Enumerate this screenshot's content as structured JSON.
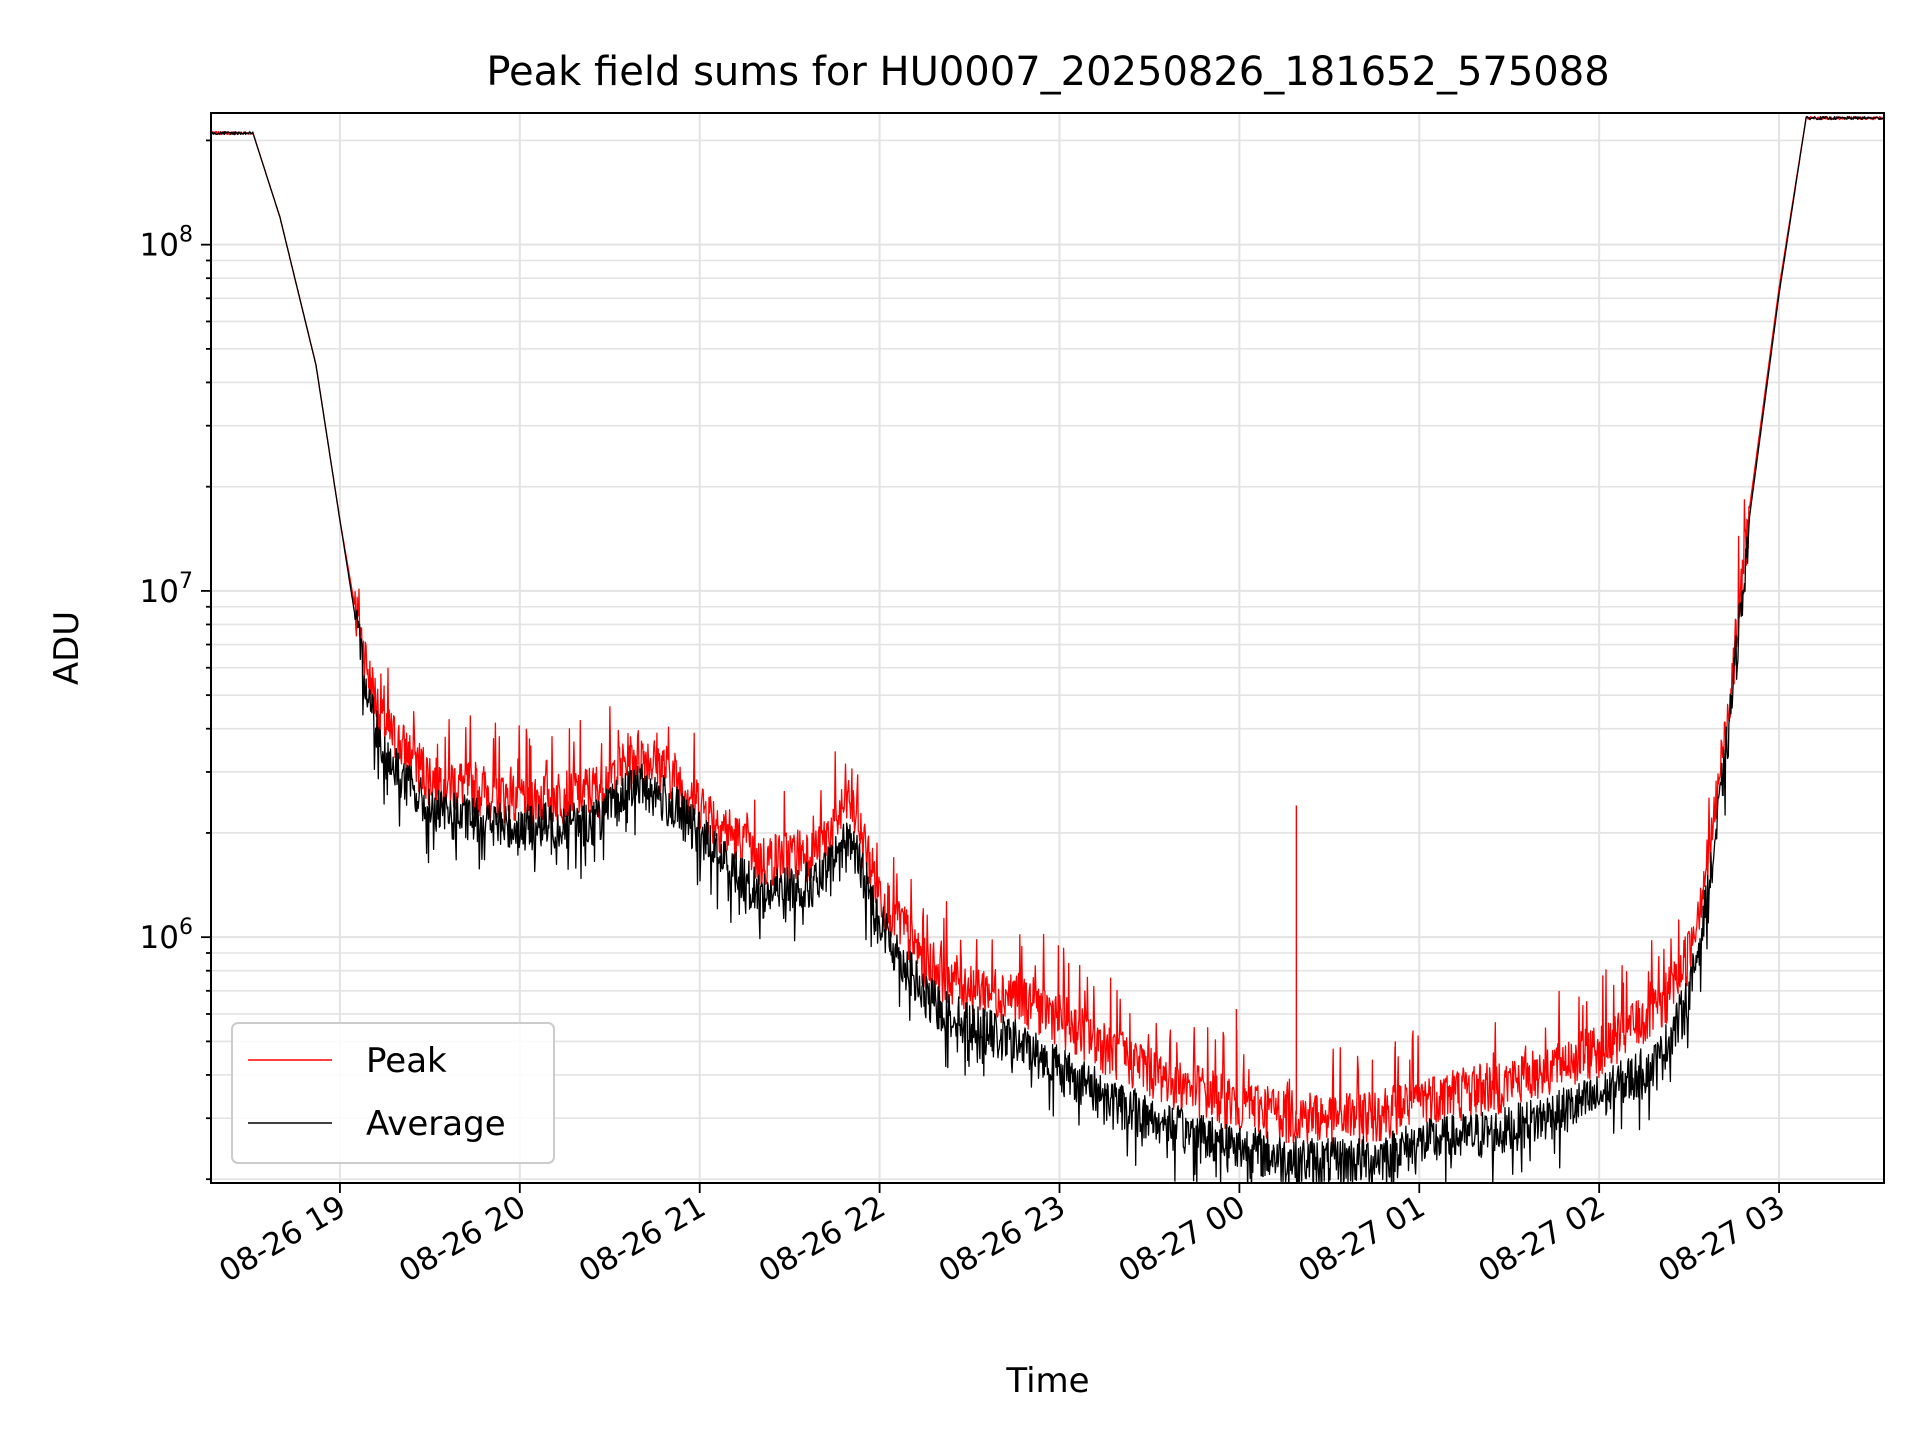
{
  "chart_data": {
    "type": "line",
    "title": "Peak field sums for HU0007_20250826_181652_575088",
    "xlabel": "Time",
    "ylabel": "ADU",
    "yscale": "log",
    "ylim": [
      195000,
      240000000
    ],
    "xlim": [
      "2025-08-26 18:17",
      "2025-08-27 03:35"
    ],
    "grid": true,
    "legend_position": "lower-left",
    "x_ticks": [
      {
        "value": "2025-08-26 19:00",
        "label": "08-26 19"
      },
      {
        "value": "2025-08-26 20:00",
        "label": "08-26 20"
      },
      {
        "value": "2025-08-26 21:00",
        "label": "08-26 21"
      },
      {
        "value": "2025-08-26 22:00",
        "label": "08-26 22"
      },
      {
        "value": "2025-08-26 23:00",
        "label": "08-26 23"
      },
      {
        "value": "2025-08-27 00:00",
        "label": "08-27 00"
      },
      {
        "value": "2025-08-27 01:00",
        "label": "08-27 01"
      },
      {
        "value": "2025-08-27 02:00",
        "label": "08-27 02"
      },
      {
        "value": "2025-08-27 03:00",
        "label": "08-27 03"
      }
    ],
    "y_ticks": [
      {
        "value": 1000000,
        "base": "10",
        "exp": "6"
      },
      {
        "value": 10000000,
        "base": "10",
        "exp": "7"
      },
      {
        "value": 100000000,
        "base": "10",
        "exp": "8"
      }
    ],
    "series": [
      {
        "name": "Peak",
        "color": "#ff0000",
        "x": [
          "2025-08-26 18:17",
          "2025-08-26 18:31",
          "2025-08-26 18:40",
          "2025-08-26 18:52",
          "2025-08-26 19:00",
          "2025-08-26 19:05",
          "2025-08-26 19:10",
          "2025-08-26 19:15",
          "2025-08-26 19:30",
          "2025-08-26 20:00",
          "2025-08-26 20:25",
          "2025-08-26 20:40",
          "2025-08-26 20:50",
          "2025-08-26 21:05",
          "2025-08-26 21:20",
          "2025-08-26 21:40",
          "2025-08-26 21:50",
          "2025-08-26 22:00",
          "2025-08-26 22:15",
          "2025-08-26 22:30",
          "2025-08-26 22:45",
          "2025-08-26 23:00",
          "2025-08-26 23:20",
          "2025-08-26 23:40",
          "2025-08-27 00:00",
          "2025-08-27 00:15",
          "2025-08-27 00:30",
          "2025-08-27 00:45",
          "2025-08-27 01:00",
          "2025-08-27 01:30",
          "2025-08-27 02:00",
          "2025-08-27 02:20",
          "2025-08-27 02:30",
          "2025-08-27 02:37",
          "2025-08-27 02:43",
          "2025-08-27 02:50",
          "2025-08-27 03:00",
          "2025-08-27 03:09",
          "2025-08-27 03:35"
        ],
        "values": [
          210000000,
          210000000,
          120000000,
          45000000,
          16000000,
          9000000,
          5500000,
          4000000,
          2900000,
          2500000,
          2650000,
          3400000,
          3000000,
          2200000,
          1650000,
          1800000,
          2500000,
          1350000,
          850000,
          720000,
          680000,
          590000,
          460000,
          380000,
          330000,
          310000,
          300000,
          310000,
          340000,
          380000,
          480000,
          620000,
          900000,
          1800000,
          4500000,
          17000000,
          75000000,
          232000000,
          232000000
        ],
        "spikes": [
          {
            "x": "2025-08-27 00:19",
            "value": 2400000
          },
          {
            "x": "2025-08-26 23:59",
            "value": 620000
          },
          {
            "x": "2025-08-27 00:52",
            "value": 500000
          }
        ]
      },
      {
        "name": "Average",
        "color": "#000000",
        "x": [
          "2025-08-26 18:17",
          "2025-08-26 18:31",
          "2025-08-26 18:40",
          "2025-08-26 18:52",
          "2025-08-26 19:00",
          "2025-08-26 19:05",
          "2025-08-26 19:10",
          "2025-08-26 19:15",
          "2025-08-26 19:30",
          "2025-08-26 20:00",
          "2025-08-26 20:25",
          "2025-08-26 20:40",
          "2025-08-26 20:50",
          "2025-08-26 21:05",
          "2025-08-26 21:20",
          "2025-08-26 21:40",
          "2025-08-26 21:50",
          "2025-08-26 22:00",
          "2025-08-26 22:15",
          "2025-08-26 22:30",
          "2025-08-26 22:45",
          "2025-08-26 23:00",
          "2025-08-26 23:20",
          "2025-08-26 23:40",
          "2025-08-27 00:00",
          "2025-08-27 00:15",
          "2025-08-27 00:30",
          "2025-08-27 00:45",
          "2025-08-27 01:00",
          "2025-08-27 01:30",
          "2025-08-27 02:00",
          "2025-08-27 02:20",
          "2025-08-27 02:30",
          "2025-08-27 02:37",
          "2025-08-27 02:43",
          "2025-08-27 02:50",
          "2025-08-27 03:00",
          "2025-08-27 03:09",
          "2025-08-27 03:35"
        ],
        "values": [
          210000000,
          210000000,
          120000000,
          45000000,
          16000000,
          8500000,
          5000000,
          3500000,
          2400000,
          2150000,
          2250000,
          2900000,
          2550000,
          1850000,
          1380000,
          1500000,
          2050000,
          1150000,
          700000,
          580000,
          520000,
          440000,
          340000,
          290000,
          260000,
          240000,
          235000,
          240000,
          265000,
          290000,
          360000,
          460000,
          700000,
          1500000,
          4000000,
          16000000,
          72000000,
          232000000,
          232000000
        ]
      }
    ]
  }
}
